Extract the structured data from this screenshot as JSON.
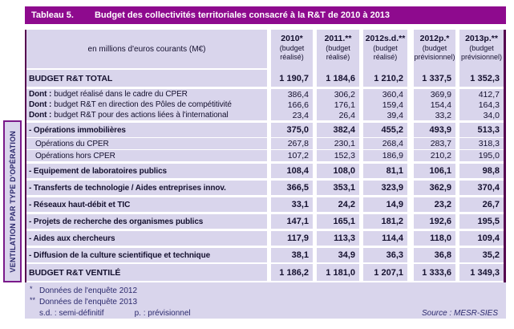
{
  "title": {
    "label": "Tableau 5.",
    "text": "Budget des collectivités territoriales consacré à la R&T de 2010 à 2013"
  },
  "table": {
    "unit_header": "en millions d'euros courants (M€)",
    "columns": [
      {
        "year": "2010*",
        "note": "(budget réalisé)"
      },
      {
        "year": "2011.**",
        "note": "(budget réalisé)"
      },
      {
        "year": "2012s.d.**",
        "note": "(budget réalisé)"
      },
      {
        "year": "2012p.*",
        "note": "(budget prévisionnel)"
      },
      {
        "year": "2013p.**",
        "note": "(budget prévisionnel)"
      }
    ],
    "rows": [
      {
        "style": "total",
        "label": "BUDGET R&T TOTAL",
        "values": [
          "1 190,7",
          "1 184,6",
          "1 210,2",
          "1 337,5",
          "1 352,3"
        ]
      },
      {
        "style": "dont",
        "prefix": "Dont :",
        "label": "budget réalisé dans le cadre du CPER",
        "values": [
          "386,4",
          "306,2",
          "360,4",
          "369,9",
          "412,7"
        ]
      },
      {
        "style": "dont",
        "prefix": "Dont :",
        "label": "budget R&T en direction des Pôles de compétitivité",
        "values": [
          "166,6",
          "176,1",
          "159,4",
          "154,4",
          "164,3"
        ]
      },
      {
        "style": "dont",
        "prefix": "Dont :",
        "label": "budget R&T pour des actions liées à l'international",
        "values": [
          "23,4",
          "26,4",
          "39,4",
          "33,2",
          "34,0"
        ]
      },
      {
        "style": "section",
        "label": "- Opérations immobilières",
        "values": [
          "375,0",
          "382,4",
          "455,2",
          "493,9",
          "513,3"
        ]
      },
      {
        "style": "sub",
        "label": "Opérations du CPER",
        "values": [
          "267,8",
          "230,1",
          "268,4",
          "283,7",
          "318,3"
        ]
      },
      {
        "style": "sub",
        "label": "Opérations hors CPER",
        "values": [
          "107,2",
          "152,3",
          "186,9",
          "210,2",
          "195,0"
        ]
      },
      {
        "style": "section",
        "label": "- Equipement de laboratoires publics",
        "values": [
          "108,4",
          "108,0",
          "81,1",
          "106,1",
          "98,8"
        ]
      },
      {
        "style": "section",
        "label": "- Transferts de technologie / Aides entreprises innov.",
        "values": [
          "366,5",
          "353,1",
          "323,9",
          "362,9",
          "370,4"
        ]
      },
      {
        "style": "section",
        "label": "- Réseaux haut-débit et TIC",
        "values": [
          "33,1",
          "24,2",
          "14,9",
          "23,2",
          "26,7"
        ]
      },
      {
        "style": "section",
        "label": "- Projets de recherche des organismes publics",
        "values": [
          "147,1",
          "165,1",
          "181,2",
          "192,6",
          "195,5"
        ]
      },
      {
        "style": "section",
        "label": "- Aides aux chercheurs",
        "values": [
          "117,9",
          "113,3",
          "114,4",
          "118,0",
          "109,4"
        ]
      },
      {
        "style": "section",
        "label": "- Diffusion de la culture scientifique et technique",
        "values": [
          "38,1",
          "34,9",
          "36,3",
          "36,8",
          "35,2"
        ]
      },
      {
        "style": "total",
        "label": "BUDGET R&T VENTILÉ",
        "values": [
          "1 186,2",
          "1 181,0",
          "1 207,1",
          "1 333,6",
          "1 349,3"
        ]
      }
    ]
  },
  "side_label": "VENTILATION PAR TYPE D'OPÉRATION",
  "footnotes": {
    "line1": {
      "marker": "*",
      "text": "Données de l'enquête 2012"
    },
    "line2": {
      "marker": "**",
      "text": "Données de l'enquête 2013"
    },
    "line3a": "s.d. : semi-définitif",
    "line3b": "p. : prévisionnel",
    "source": "Source : MESR-SIES"
  },
  "colors": {
    "title_bar": "#8e0a8e",
    "cell_background": "#d9d5ec",
    "border_purple": "#55034f",
    "rule_purple": "#6b096b",
    "text_dark": "#14102e",
    "footnote_text": "#2c2a6d"
  }
}
